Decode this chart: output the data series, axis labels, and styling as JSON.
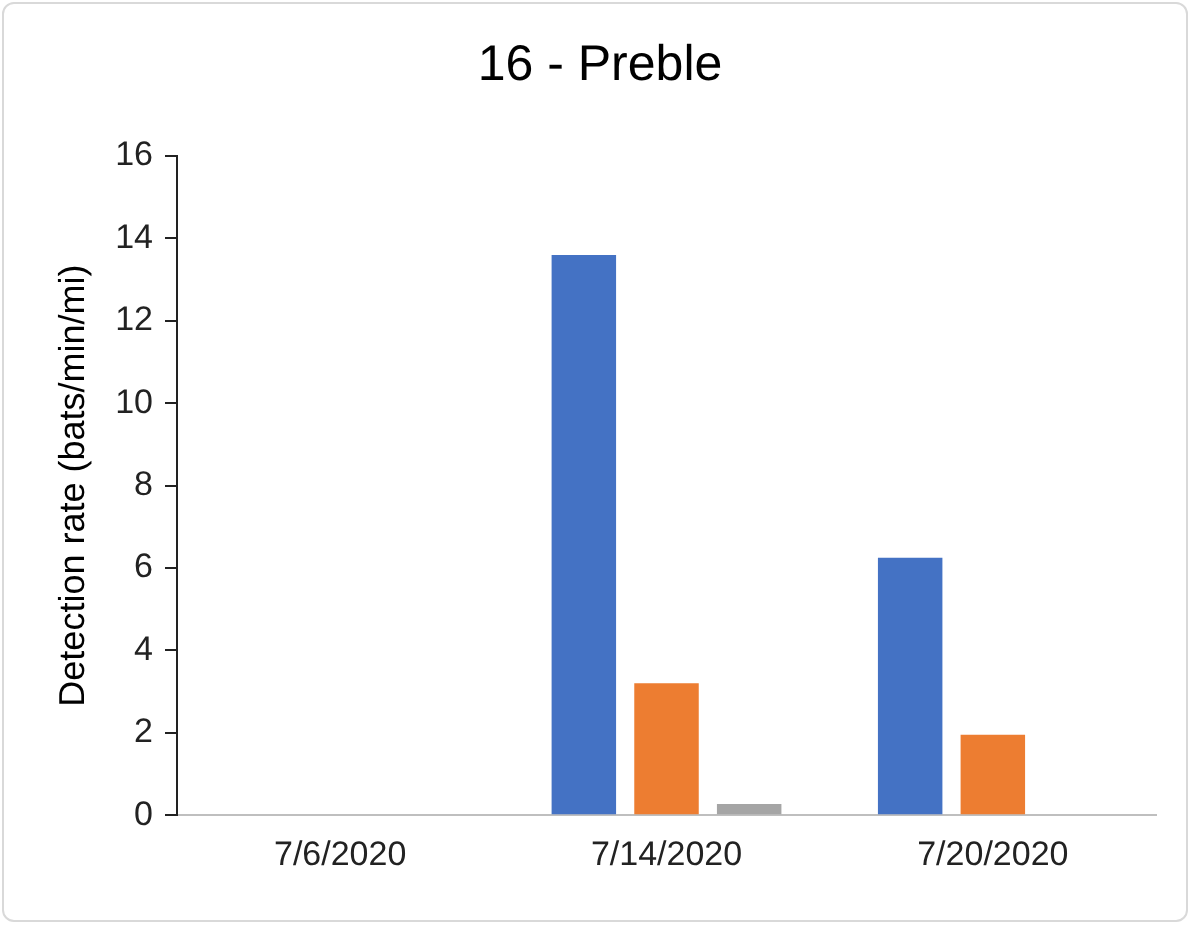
{
  "chart_data": {
    "type": "bar",
    "title": "16 - Preble",
    "ylabel": "Detection rate (bats/min/mi)",
    "categories": [
      "7/6/2020",
      "7/14/2020",
      "7/20/2020"
    ],
    "series": [
      {
        "color": "#4472c4",
        "values": [
          0,
          13.6,
          6.25
        ]
      },
      {
        "color": "#ed7d31",
        "values": [
          0,
          3.2,
          1.95
        ]
      },
      {
        "color": "#a5a5a5",
        "values": [
          0,
          0.27,
          0
        ]
      }
    ],
    "ylim": [
      0,
      16
    ],
    "yticks": [
      0,
      2,
      4,
      6,
      8,
      10,
      12,
      14,
      16
    ],
    "grid": false,
    "legend": false
  }
}
